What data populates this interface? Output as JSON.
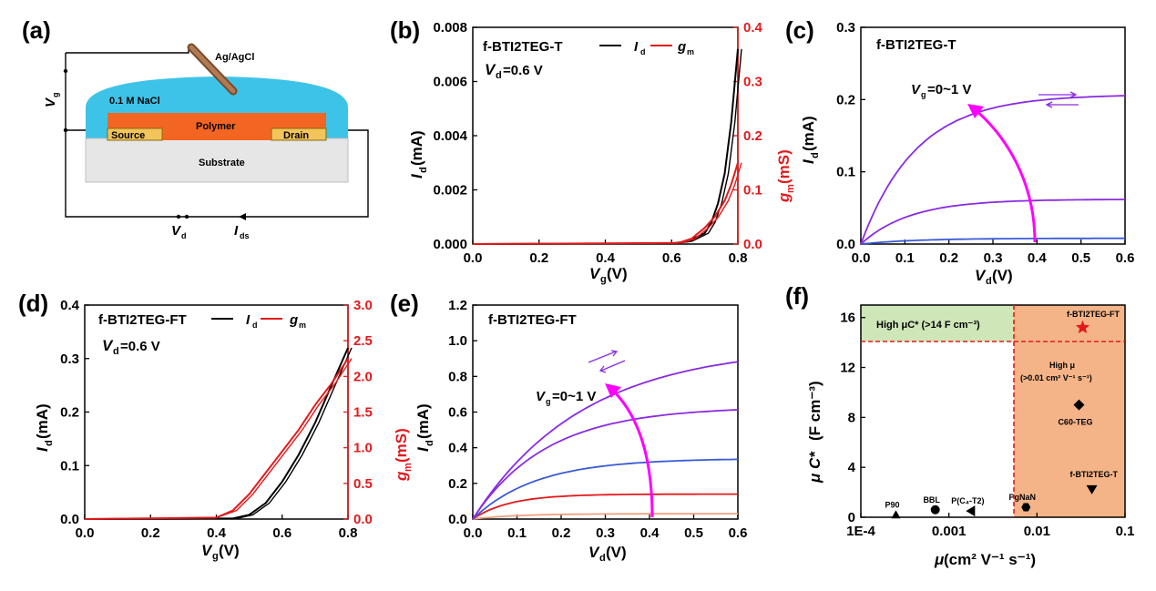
{
  "panel_labels": [
    "(a)",
    "(b)",
    "(c)",
    "(d)",
    "(e)",
    "(f)"
  ],
  "diagram": {
    "electrode": "Ag/AgCl",
    "electrolyte": "0.1 M NaCl",
    "channel": "Polymer",
    "source": "Source",
    "drain": "Drain",
    "substrate": "Substrate",
    "vg_label": "V",
    "vg_sub": "g",
    "vd_label": "V",
    "vd_sub": "d",
    "ids_label": "I",
    "ids_sub": "ds"
  },
  "colors": {
    "id": "#000000",
    "gm": "#e31a1c",
    "arrow": "#ff00ff",
    "purple": "#8a2be2",
    "blue": "#3a5bd9",
    "green_box": "#cfe6b8",
    "orange_box": "#f4b488"
  },
  "chart_data": [
    {
      "id": "b",
      "type": "line",
      "title": "f-BTI2TEG-T",
      "condition": "=0.6 V",
      "condition_var": "V",
      "condition_sub": "d",
      "legend": [
        "I",
        "g"
      ],
      "legend_subs": [
        "d",
        "m"
      ],
      "legend_position": "top-right",
      "xlabel": "V",
      "xlabel_sub": "g",
      "xunit": " (V)",
      "ylabel": "I",
      "ylabel_sub": "d",
      "yunit": " (mA)",
      "y2label": "g",
      "y2label_sub": "m",
      "y2unit": " (mS)",
      "xlim": [
        0,
        0.8
      ],
      "ylim": [
        0,
        0.008
      ],
      "y2lim": [
        0,
        0.4
      ],
      "xticks": [
        "0.0",
        "0.2",
        "0.4",
        "0.6",
        "0.8"
      ],
      "yticks": [
        "0.000",
        "0.002",
        "0.004",
        "0.006",
        "0.008"
      ],
      "y2ticks": [
        "0.0",
        "0.1",
        "0.2",
        "0.3",
        "0.4"
      ],
      "series": [
        {
          "name": "I",
          "axis": "left",
          "color": "#000000",
          "x": [
            0,
            0.6,
            0.65,
            0.7,
            0.72,
            0.74,
            0.76,
            0.78,
            0.8
          ],
          "y": [
            0,
            2e-05,
            0.0001,
            0.0004,
            0.0008,
            0.0015,
            0.0026,
            0.0045,
            0.0072
          ]
        },
        {
          "name": "g",
          "axis": "right",
          "color": "#e31a1c",
          "x": [
            0,
            0.62,
            0.66,
            0.7,
            0.73,
            0.76,
            0.78,
            0.8
          ],
          "y": [
            0,
            0.002,
            0.01,
            0.03,
            0.05,
            0.08,
            0.11,
            0.15
          ]
        }
      ]
    },
    {
      "id": "c",
      "type": "line",
      "title": "f-BTI2TEG-T",
      "annotation": "=0~1 V",
      "annotation_var": "V",
      "annotation_sub": "g",
      "xlabel": "V",
      "xlabel_sub": "d",
      "xunit": " (V)",
      "ylabel": "I",
      "ylabel_sub": "d",
      "yunit": " (mA)",
      "xlim": [
        0,
        0.6
      ],
      "ylim": [
        0,
        0.3
      ],
      "xticks": [
        "0.0",
        "0.1",
        "0.2",
        "0.3",
        "0.4",
        "0.5",
        "0.6"
      ],
      "yticks": [
        "0.0",
        "0.1",
        "0.2",
        "0.3"
      ],
      "series": [
        {
          "color": "#3a5bd9",
          "sat": 0.008,
          "k": 8
        },
        {
          "color": "#8a2be2",
          "sat": 0.062,
          "k": 9
        },
        {
          "color": "#8a2be2",
          "sat": 0.207,
          "k": 8
        }
      ]
    },
    {
      "id": "d",
      "type": "line",
      "title": "f-BTI2TEG-FT",
      "condition": "=0.6 V",
      "condition_var": "V",
      "condition_sub": "d",
      "legend": [
        "I",
        "g"
      ],
      "legend_subs": [
        "d",
        "m"
      ],
      "legend_position": "top-right",
      "xlabel": "V",
      "xlabel_sub": "g",
      "xunit": " (V)",
      "ylabel": "I",
      "ylabel_sub": "d",
      "yunit": " (mA)",
      "y2label": "g",
      "y2label_sub": "m",
      "y2unit": " (mS)",
      "xlim": [
        0,
        0.8
      ],
      "ylim": [
        0,
        0.4
      ],
      "y2lim": [
        0,
        3.0
      ],
      "xticks": [
        "0.0",
        "0.2",
        "0.4",
        "0.6",
        "0.8"
      ],
      "yticks": [
        "0.0",
        "0.1",
        "0.2",
        "0.3",
        "0.4"
      ],
      "y2ticks": [
        "0.0",
        "0.5",
        "1.0",
        "1.5",
        "2.0",
        "2.5",
        "3.0"
      ],
      "series": [
        {
          "name": "I",
          "axis": "left",
          "color": "#000000",
          "x": [
            0,
            0.45,
            0.5,
            0.55,
            0.6,
            0.65,
            0.7,
            0.75,
            0.8
          ],
          "y": [
            0,
            0.001,
            0.008,
            0.03,
            0.07,
            0.12,
            0.18,
            0.25,
            0.32
          ]
        },
        {
          "name": "g",
          "axis": "right",
          "color": "#e31a1c",
          "x": [
            0,
            0.4,
            0.45,
            0.5,
            0.55,
            0.6,
            0.65,
            0.7,
            0.75,
            0.8
          ],
          "y": [
            0,
            0.02,
            0.12,
            0.35,
            0.65,
            0.95,
            1.25,
            1.6,
            1.9,
            2.25
          ]
        }
      ]
    },
    {
      "id": "e",
      "type": "line",
      "title": "f-BTI2TEG-FT",
      "annotation": "=0~1 V",
      "annotation_var": "V",
      "annotation_sub": "g",
      "xlabel": "V",
      "xlabel_sub": "d",
      "xunit": " (V)",
      "ylabel": "I",
      "ylabel_sub": "d",
      "yunit": " (mA)",
      "xlim": [
        0,
        0.6
      ],
      "ylim": [
        0,
        1.2
      ],
      "xticks": [
        "0.0",
        "0.1",
        "0.2",
        "0.3",
        "0.4",
        "0.5",
        "0.6"
      ],
      "yticks": [
        "0.0",
        "0.2",
        "0.4",
        "0.6",
        "0.8",
        "1.0",
        "1.2"
      ],
      "series": [
        {
          "color": "#f0a080",
          "sat": 0.03,
          "k": 10
        },
        {
          "color": "#e31a1c",
          "sat": 0.14,
          "k": 12
        },
        {
          "color": "#3a5bd9",
          "sat": 0.34,
          "k": 7
        },
        {
          "color": "#8a2be2",
          "sat": 0.63,
          "k": 6
        },
        {
          "color": "#8a2be2",
          "sat": 0.97,
          "k": 4
        }
      ]
    },
    {
      "id": "f",
      "type": "scatter",
      "xlabel": "μ",
      "xunit": " (cm² V⁻¹ s⁻¹)",
      "ylabel": "μ C*",
      "yunit": " (F cm⁻³)",
      "xscale": "log",
      "xlim": [
        0.0001,
        0.1
      ],
      "ylim": [
        0,
        17
      ],
      "xticks": [
        "1E-4",
        "0.001",
        "0.01",
        "0.1"
      ],
      "yticks": [
        "0",
        "4",
        "8",
        "12",
        "16"
      ],
      "region_labels": [
        "High μC* (>14 F cm⁻³)",
        "High μ",
        "(>0.01 cm² V⁻¹ s⁻¹)"
      ],
      "points": [
        {
          "label": "P90",
          "x": 0.00025,
          "y": 0.2,
          "marker": "triangle-up"
        },
        {
          "label": "BBL",
          "x": 0.0007,
          "y": 0.6,
          "marker": "circle"
        },
        {
          "label": "P(C₄-T2)",
          "x": 0.0018,
          "y": 0.5,
          "marker": "triangle-left"
        },
        {
          "label": "PgNaN",
          "x": 0.0075,
          "y": 0.8,
          "marker": "hexagon"
        },
        {
          "label": "C60-TEG",
          "x": 0.03,
          "y": 9.0,
          "marker": "diamond"
        },
        {
          "label": "f-BTI2TEG-T",
          "x": 0.042,
          "y": 2.2,
          "marker": "triangle-down"
        },
        {
          "label": "f-BTI2TEG-FT",
          "x": 0.033,
          "y": 15.2,
          "marker": "star"
        }
      ]
    }
  ]
}
